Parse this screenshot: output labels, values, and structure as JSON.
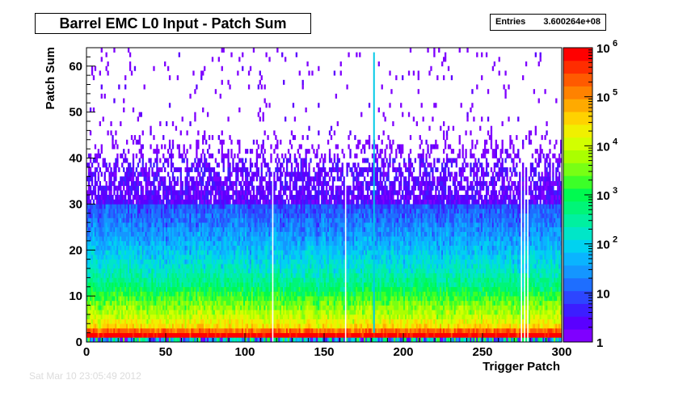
{
  "chart_data": {
    "type": "heatmap",
    "title": "Barrel EMC L0 Input - Patch Sum",
    "xlabel": "Trigger Patch",
    "ylabel": "Patch Sum",
    "xlim": [
      0,
      300
    ],
    "ylim": [
      0,
      64
    ],
    "x_ticks": [
      "0",
      "50",
      "100",
      "150",
      "200",
      "250",
      "300"
    ],
    "y_ticks": [
      "0",
      "10",
      "20",
      "30",
      "40",
      "50",
      "60"
    ],
    "z_scale": "log",
    "zlim": [
      1,
      1000000
    ],
    "z_ticks": [
      "1",
      "10",
      "10",
      "10",
      "10",
      "10",
      "10"
    ],
    "z_tick_exponents": [
      "",
      "",
      "2",
      "3",
      "4",
      "5",
      "6"
    ],
    "z_tick_values": [
      1,
      10,
      100,
      1000,
      10000,
      100000,
      1000000
    ],
    "stats": {
      "label": "Entries",
      "value": "3.600264e+08"
    },
    "empty_columns": [
      117,
      163,
      274,
      276,
      278
    ],
    "hot_column": 181,
    "approx_profile_note": "counts per cell fall from ~1e6 at PatchSum 0-1 to ~1 near PatchSum 40-63",
    "profile": [
      {
        "patch_sum": 0,
        "count": 100
      },
      {
        "patch_sum": 1,
        "count": 1000000
      },
      {
        "patch_sum": 2,
        "count": 200000
      },
      {
        "patch_sum": 3,
        "count": 30000
      },
      {
        "patch_sum": 5,
        "count": 10000
      },
      {
        "patch_sum": 8,
        "count": 3000
      },
      {
        "patch_sum": 12,
        "count": 500
      },
      {
        "patch_sum": 16,
        "count": 150
      },
      {
        "patch_sum": 20,
        "count": 60
      },
      {
        "patch_sum": 25,
        "count": 20
      },
      {
        "patch_sum": 30,
        "count": 8
      },
      {
        "patch_sum": 35,
        "count": 3
      },
      {
        "patch_sum": 40,
        "count": 1.5
      },
      {
        "patch_sum": 50,
        "count": 1
      },
      {
        "patch_sum": 63,
        "count": 1
      }
    ]
  },
  "colors": {
    "palette": [
      "#7f00ff",
      "#5a00ff",
      "#3c1eff",
      "#2d46ff",
      "#1e6eff",
      "#1496ff",
      "#0ab4ff",
      "#00d2f0",
      "#00e6c8",
      "#00f0a0",
      "#00f578",
      "#00fa50",
      "#3cff28",
      "#78ff14",
      "#aaff00",
      "#d2ff00",
      "#f0f000",
      "#ffd200",
      "#ffaa00",
      "#ff8200",
      "#ff5a00",
      "#ff2d00",
      "#ff0000"
    ]
  },
  "footer": {
    "stamp": "Sat Mar 10 23:05:49 2012"
  }
}
